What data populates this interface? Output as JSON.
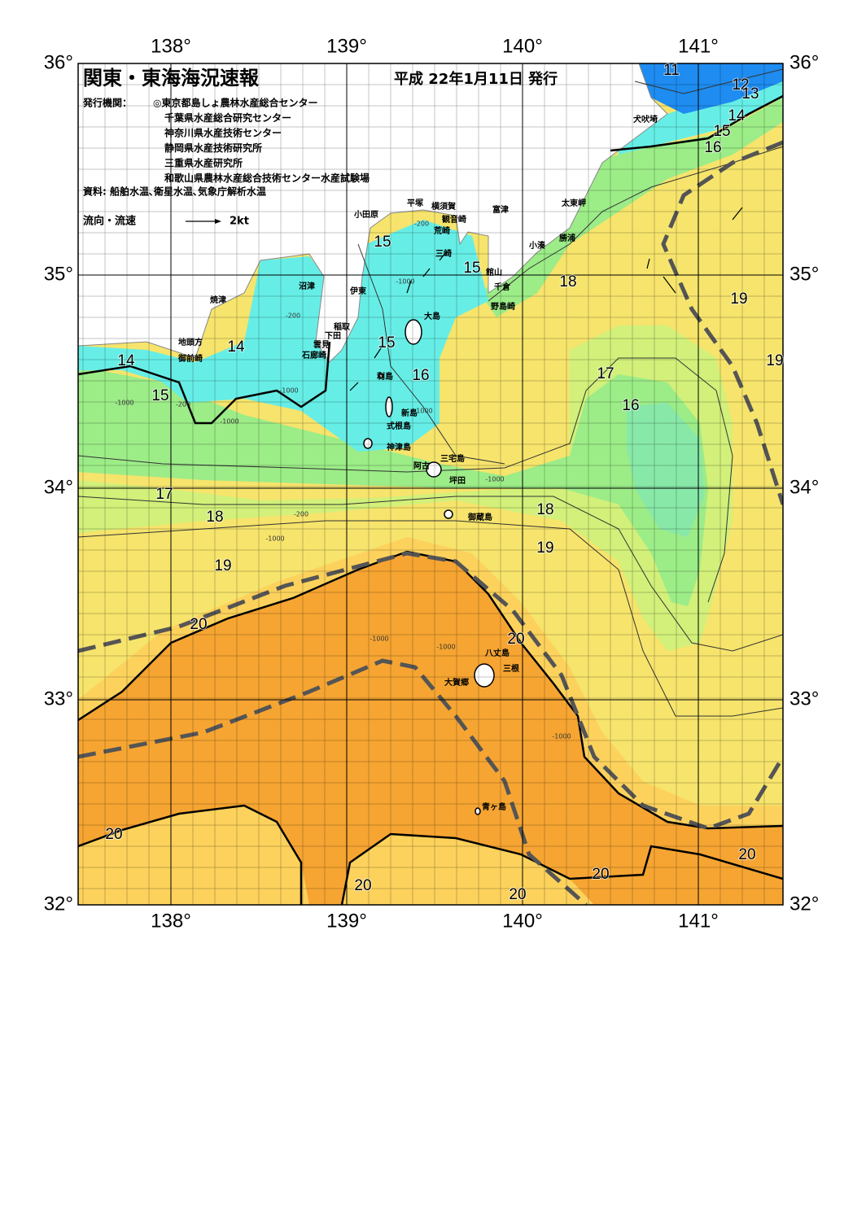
{
  "header": {
    "title": "関東・東海海況速報",
    "date": "平成 22年1月11日 発行"
  },
  "issuers": {
    "label": "発行機関：",
    "list": [
      "◎東京都島しょ農林水産総合センター",
      "千葉県水産総合研究センター",
      "神奈川県水産技術センター",
      "静岡県水産技術研究所",
      "三重県水産研究所",
      "和歌山県農林水産総合技術センター水産試験場"
    ]
  },
  "sources": "資料: 船舶水温､衛星水温､気象庁解析水温",
  "legend": {
    "label": "流向・流速",
    "speed": "2kt"
  },
  "axes": {
    "lon_top": [
      "138°",
      "139°",
      "140°",
      "141°"
    ],
    "lon_bottom": [
      "138°",
      "139°",
      "140°",
      "141°"
    ],
    "lat_left": [
      "36°",
      "35°",
      "34°",
      "33°",
      "32°"
    ],
    "lat_right": [
      "36°",
      "35°",
      "34°",
      "33°",
      "32°"
    ]
  },
  "places": [
    "小田原",
    "平塚",
    "横須賀",
    "観音崎",
    "富津",
    "荒崎",
    "三崎",
    "太東岬",
    "勝浦",
    "小湊",
    "館山",
    "千倉",
    "野島崎",
    "犬吠埼",
    "沼津",
    "伊東",
    "焼津",
    "稲取",
    "下田",
    "雲見",
    "石廊崎",
    "地頭方",
    "御前崎",
    "大島",
    "利島",
    "新島",
    "式根島",
    "神津島",
    "三宅島",
    "阿古",
    "坪田",
    "御蔵島",
    "八丈島",
    "三根",
    "大賀郷",
    "青ヶ島"
  ],
  "isotherm_labels": [
    "11",
    "12",
    "13",
    "14",
    "15",
    "16",
    "15",
    "15",
    "18",
    "19",
    "19",
    "14",
    "14",
    "15",
    "16",
    "17",
    "16",
    "15",
    "17",
    "18",
    "18",
    "19",
    "19",
    "20",
    "20",
    "20",
    "20",
    "20",
    "20",
    "20"
  ],
  "depth_labels": [
    "-200",
    "-1000",
    "-200",
    "-1000",
    "-1000",
    "-200",
    "-1000",
    "-1000",
    "-1000",
    "-200",
    "-1000",
    "-1000",
    "-1000",
    "-1000"
  ]
}
